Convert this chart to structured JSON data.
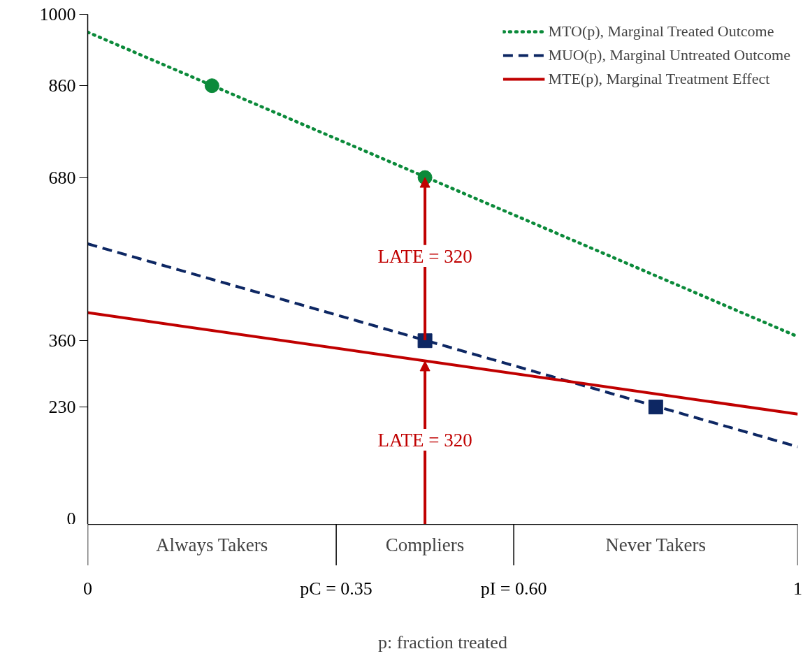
{
  "chart_data": {
    "type": "line",
    "xlabel": "p: fraction treated",
    "xlim": [
      0,
      1
    ],
    "ylim": [
      0,
      1000
    ],
    "xticks": [
      0,
      {
        "value": 0.35,
        "label": "pC = 0.35"
      },
      {
        "value": 0.6,
        "label": "pI = 0.60"
      },
      1
    ],
    "yticks": [
      0,
      230,
      360,
      680,
      860,
      1000
    ],
    "grid": false,
    "legend": "top right",
    "series": [
      {
        "name": "MTO(p), Marginal Treated Outcome",
        "line_style": "dotted",
        "color": "#0b8a3a",
        "x": [
          0,
          1
        ],
        "values": [
          965,
          368
        ]
      },
      {
        "name": "MUO(p), Marginal Untreated Outcome",
        "line_style": "dashed",
        "color": "#0d2763",
        "x": [
          0,
          1
        ],
        "values": [
          550,
          152
        ]
      },
      {
        "name": "MTE(p), Marginal Treatment Effect",
        "line_style": "solid",
        "color": "#c00000",
        "x": [
          0,
          1
        ],
        "values": [
          415,
          216
        ]
      },
      {
        "type": "scatter",
        "marker": "circle",
        "color": "#0b8a3a",
        "x": [
          0.175,
          0.475
        ],
        "values": [
          860,
          680
        ]
      },
      {
        "type": "scatter",
        "marker": "square",
        "color": "#0d2763",
        "x": [
          0.475,
          0.8
        ],
        "values": [
          360,
          230
        ]
      }
    ],
    "annotations": [
      {
        "text": "LATE = 320",
        "x": 0.475,
        "y": 680
      },
      {
        "text": "LATE = 320",
        "x": 0.475,
        "y": 320
      },
      "Always Takers",
      "Compliers",
      "Never Takers"
    ]
  }
}
